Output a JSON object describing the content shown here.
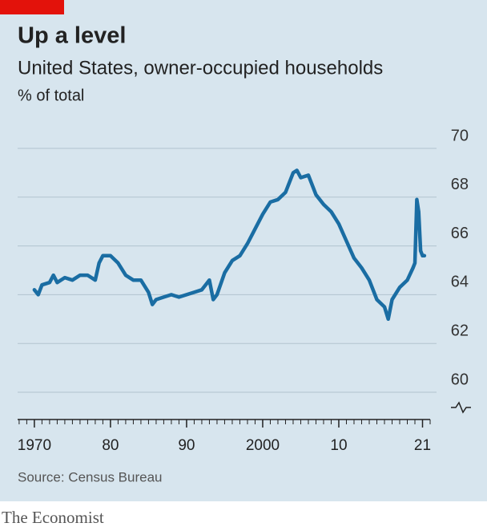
{
  "chart_data": {
    "type": "line",
    "title": "Up a level",
    "subtitle": "United States, owner-occupied households",
    "y_label": "% of total",
    "source": "Source: Census Bureau",
    "brand": "The Economist",
    "color": "#1a6da3",
    "grid": true,
    "x": [
      1970,
      1970.5,
      1971,
      1972,
      1972.5,
      1973,
      1974,
      1975,
      1976,
      1977,
      1978,
      1978.5,
      1979,
      1980,
      1981,
      1982,
      1983,
      1984,
      1985,
      1985.5,
      1986,
      1987,
      1988,
      1989,
      1990,
      1991,
      1992,
      1993,
      1993.5,
      1994,
      1995,
      1996,
      1997,
      1998,
      1999,
      2000,
      2001,
      2002,
      2003,
      2004,
      2004.5,
      2005,
      2006,
      2007,
      2008,
      2009,
      2010,
      2011,
      2012,
      2013,
      2014,
      2015,
      2016,
      2016.5,
      2017,
      2018,
      2019,
      2019.75,
      2020,
      2020.25,
      2020.5,
      2020.75,
      2021,
      2021.25
    ],
    "values": [
      64.2,
      64.0,
      64.4,
      64.5,
      64.8,
      64.5,
      64.7,
      64.6,
      64.8,
      64.8,
      64.6,
      65.3,
      65.6,
      65.6,
      65.3,
      64.8,
      64.6,
      64.6,
      64.1,
      63.6,
      63.8,
      63.9,
      64.0,
      63.9,
      64.0,
      64.1,
      64.2,
      64.6,
      63.8,
      64.0,
      64.9,
      65.4,
      65.6,
      66.1,
      66.7,
      67.3,
      67.8,
      67.9,
      68.2,
      69.0,
      69.1,
      68.8,
      68.9,
      68.1,
      67.7,
      67.4,
      66.9,
      66.2,
      65.5,
      65.1,
      64.6,
      63.8,
      63.5,
      63.0,
      63.8,
      64.3,
      64.6,
      65.1,
      65.3,
      67.9,
      67.4,
      65.8,
      65.6,
      65.6
    ],
    "xlim": [
      1967.8,
      2022
    ],
    "xticks": [
      {
        "value": 1970,
        "label": "1970"
      },
      {
        "value": 1980,
        "label": "80"
      },
      {
        "value": 1990,
        "label": "90"
      },
      {
        "value": 2000,
        "label": "2000"
      },
      {
        "value": 2010,
        "label": "10"
      },
      {
        "value": 2021,
        "label": "21"
      }
    ],
    "ylim": [
      60,
      70
    ],
    "yticks": [
      60,
      62,
      64,
      66,
      68,
      70
    ]
  }
}
